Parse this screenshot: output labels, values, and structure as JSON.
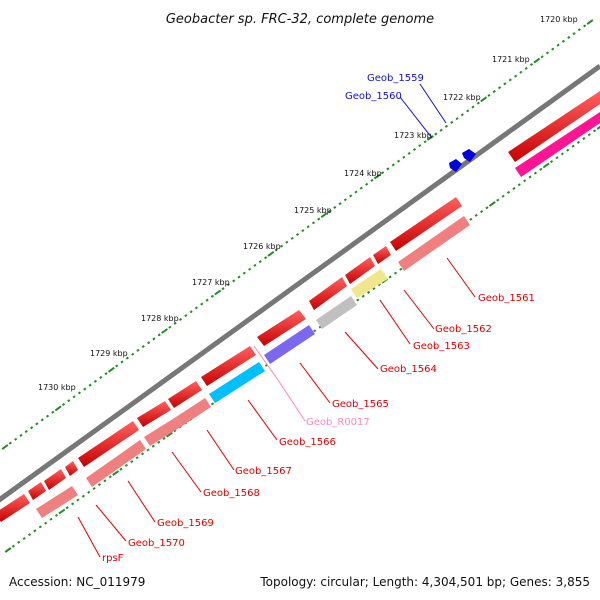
{
  "title": "Geobacter sp. FRC-32, complete genome",
  "accession": "Accession: NC_011979",
  "topology": "Topology: circular; Length: 4,304,501 bp; Genes: 3,855",
  "scale_labels": [
    "1720 kbp",
    "1721 kbp",
    "1722 kbp",
    "1723 kbp",
    "1724 kbp",
    "1725 kbp",
    "1726 kbp",
    "1727 kbp",
    "1728 kbp",
    "1729 kbp",
    "1730 kbp"
  ],
  "gene_labels": [
    {
      "name": "Geob_1559",
      "color": "#1010cc"
    },
    {
      "name": "Geob_1560",
      "color": "#1010cc"
    },
    {
      "name": "Geob_1561",
      "color": "#dd0000"
    },
    {
      "name": "Geob_1562",
      "color": "#dd0000"
    },
    {
      "name": "Geob_1563",
      "color": "#dd0000"
    },
    {
      "name": "Geob_1564",
      "color": "#dd0000"
    },
    {
      "name": "Geob_1565",
      "color": "#dd0000"
    },
    {
      "name": "Geob_R0017",
      "color": "#ff88bb"
    },
    {
      "name": "Geob_1566",
      "color": "#dd0000"
    },
    {
      "name": "Geob_1567",
      "color": "#dd0000"
    },
    {
      "name": "Geob_1568",
      "color": "#dd0000"
    },
    {
      "name": "Geob_1569",
      "color": "#dd0000"
    },
    {
      "name": "Geob_1570",
      "color": "#dd0000"
    },
    {
      "name": "rpsF",
      "color": "#dd0000"
    }
  ],
  "colors": {
    "cds": "#ff0000",
    "cds_alt": "#ff1493",
    "function_track": "#f08080",
    "backbone": "#777777",
    "ticks": "#228b22"
  }
}
